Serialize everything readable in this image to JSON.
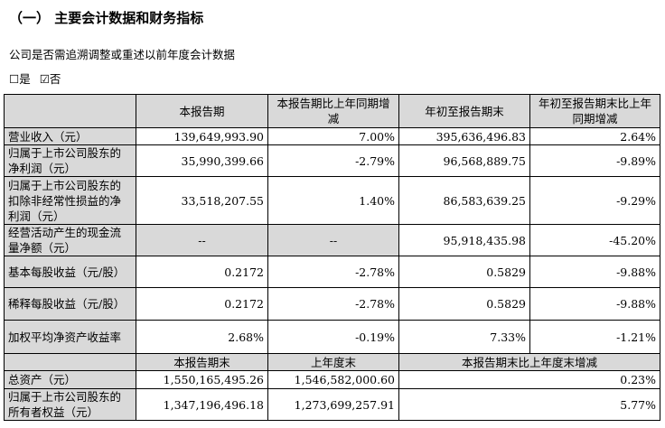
{
  "section_title": "（一） 主要会计数据和财务指标",
  "question": "公司是否需追溯调整或重述以前年度会计数据",
  "options": {
    "yes": "☐是",
    "no": "☑否"
  },
  "table1": {
    "headers": [
      "",
      "本报告期",
      "本报告期比上年同期增减",
      "年初至报告期末",
      "年初至报告期末比上年同期增减"
    ],
    "rows": [
      {
        "label": "营业收入（元）",
        "values": [
          "139,649,993.90",
          "7.00%",
          "395,636,496.83",
          "2.64%"
        ]
      },
      {
        "label": "归属于上市公司股东的净利润（元）",
        "values": [
          "35,990,399.66",
          "-2.79%",
          "96,568,889.75",
          "-9.89%"
        ]
      },
      {
        "label": "归属于上市公司股东的扣除非经常性损益的净利润（元）",
        "values": [
          "33,518,207.55",
          "1.40%",
          "86,583,639.25",
          "-9.29%"
        ]
      },
      {
        "label": "经营活动产生的现金流量净额（元）",
        "values": [
          "--",
          "--",
          "95,918,435.98",
          "-45.20%"
        ]
      },
      {
        "label": "基本每股收益（元/股）",
        "values": [
          "0.2172",
          "-2.78%",
          "0.5829",
          "-9.88%"
        ]
      },
      {
        "label": "稀释每股收益（元/股）",
        "values": [
          "0.2172",
          "-2.78%",
          "0.5829",
          "-9.88%"
        ]
      },
      {
        "label": "加权平均净资产收益率",
        "values": [
          "2.68%",
          "-0.19%",
          "7.33%",
          "-1.21%"
        ]
      }
    ]
  },
  "table2": {
    "headers": [
      "",
      "本报告期末",
      "上年度末",
      "本报告期末比上年度末增减"
    ],
    "rows": [
      {
        "label": "总资产（元）",
        "values": [
          "1,550,165,495.26",
          "1,546,582,000.60",
          "0.23%"
        ]
      },
      {
        "label": "归属于上市公司股东的所有者权益（元）",
        "values": [
          "1,347,196,496.18",
          "1,273,699,257.91",
          "5.77%"
        ]
      }
    ]
  },
  "colors": {
    "header_bg": "#d9d9d9"
  }
}
